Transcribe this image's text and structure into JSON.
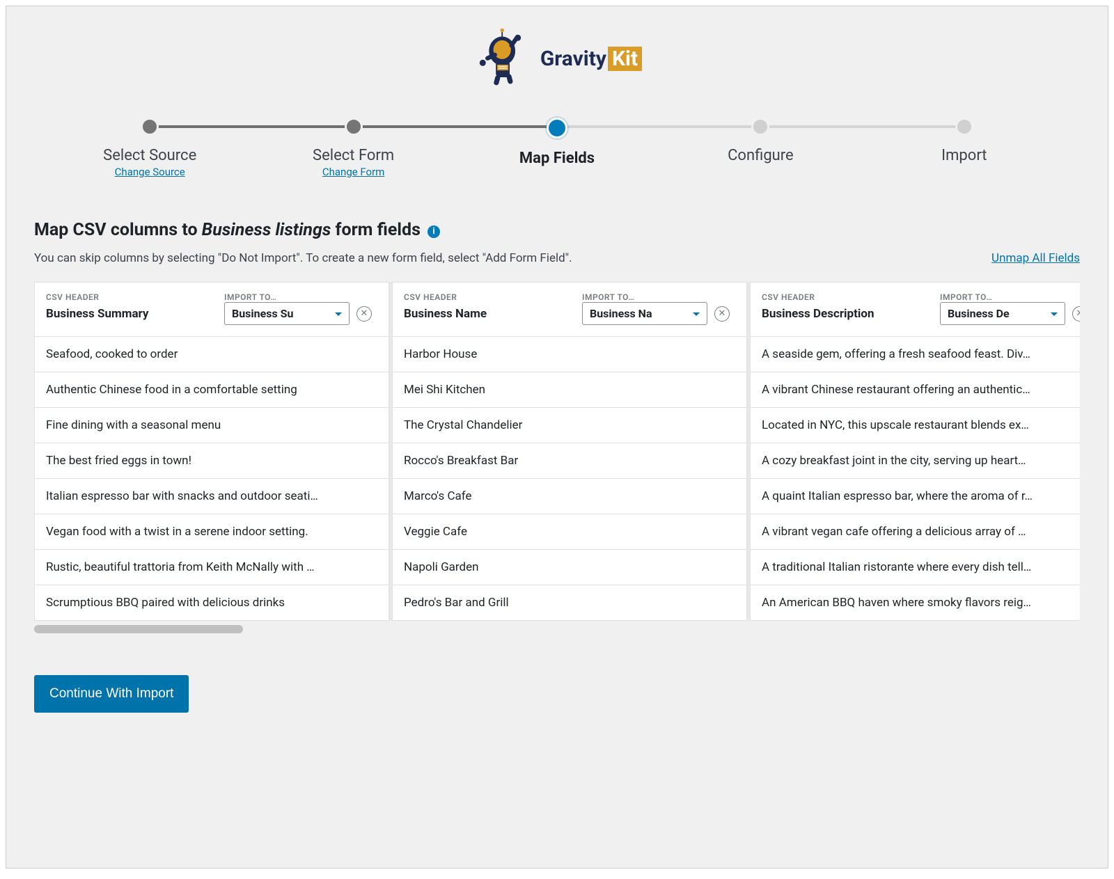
{
  "brand": {
    "name": "Gravity",
    "suffix": "Kit"
  },
  "stepper": {
    "steps": [
      {
        "label": "Select Source",
        "sublink": "Change Source",
        "state": "done"
      },
      {
        "label": "Select Form",
        "sublink": "Change Form",
        "state": "done"
      },
      {
        "label": "Map Fields",
        "sublink": "",
        "state": "active"
      },
      {
        "label": "Configure",
        "sublink": "",
        "state": "pending"
      },
      {
        "label": "Import",
        "sublink": "",
        "state": "pending"
      }
    ],
    "line_segments": [
      {
        "left_pct": 10,
        "right_pct": 50,
        "color": "#6f6f6f"
      },
      {
        "left_pct": 50,
        "right_pct": 90,
        "color": "#d4d4d4"
      }
    ]
  },
  "heading": {
    "prefix": "Map CSV columns to ",
    "form_name": "Business listings",
    "suffix": " form fields"
  },
  "subtitle": "You can skip columns by selecting \"Do Not Import\". To create a new form field, select \"Add Form Field\".",
  "unmap_label": "Unmap All Fields",
  "header_labels": {
    "csv": "CSV HEADER",
    "import": "IMPORT TO…"
  },
  "columns": [
    {
      "csv_header": "Business Summary",
      "import_to": "Business Su",
      "rows": [
        "Seafood, cooked to order",
        "Authentic Chinese food in a comfortable setting",
        "Fine dining with a seasonal menu",
        "The best fried eggs in town!",
        "Italian espresso bar with snacks and outdoor seati…",
        "Vegan food with a twist in a serene indoor setting.",
        "Rustic, beautiful trattoria from Keith McNally with …",
        "Scrumptious BBQ paired with delicious drinks"
      ]
    },
    {
      "csv_header": "Business Name",
      "import_to": "Business Na",
      "rows": [
        "Harbor House",
        "Mei Shi Kitchen",
        "The Crystal Chandelier",
        "Rocco's Breakfast Bar",
        "Marco's Cafe",
        "Veggie Cafe",
        "Napoli Garden",
        "Pedro's Bar and Grill"
      ]
    },
    {
      "csv_header": "Business Description",
      "import_to": "Business De",
      "rows": [
        "A seaside gem, offering a fresh seafood feast. Div…",
        "A vibrant Chinese restaurant offering an authentic…",
        "Located in NYC, this upscale restaurant blends ex…",
        "A cozy breakfast joint in the city, serving up heart…",
        "A quaint Italian espresso bar, where the aroma of r…",
        "A vibrant vegan cafe offering a delicious array of …",
        "A traditional Italian ristorante where every dish tell…",
        "An American BBQ haven where smoky flavors reig…"
      ]
    }
  ],
  "continue_label": "Continue With Import",
  "colors": {
    "page_bg": "#f0f0f1",
    "accent": "#007cba",
    "link": "#0073aa",
    "brand_gold": "#db9c27",
    "brand_navy": "#1e2c53"
  }
}
